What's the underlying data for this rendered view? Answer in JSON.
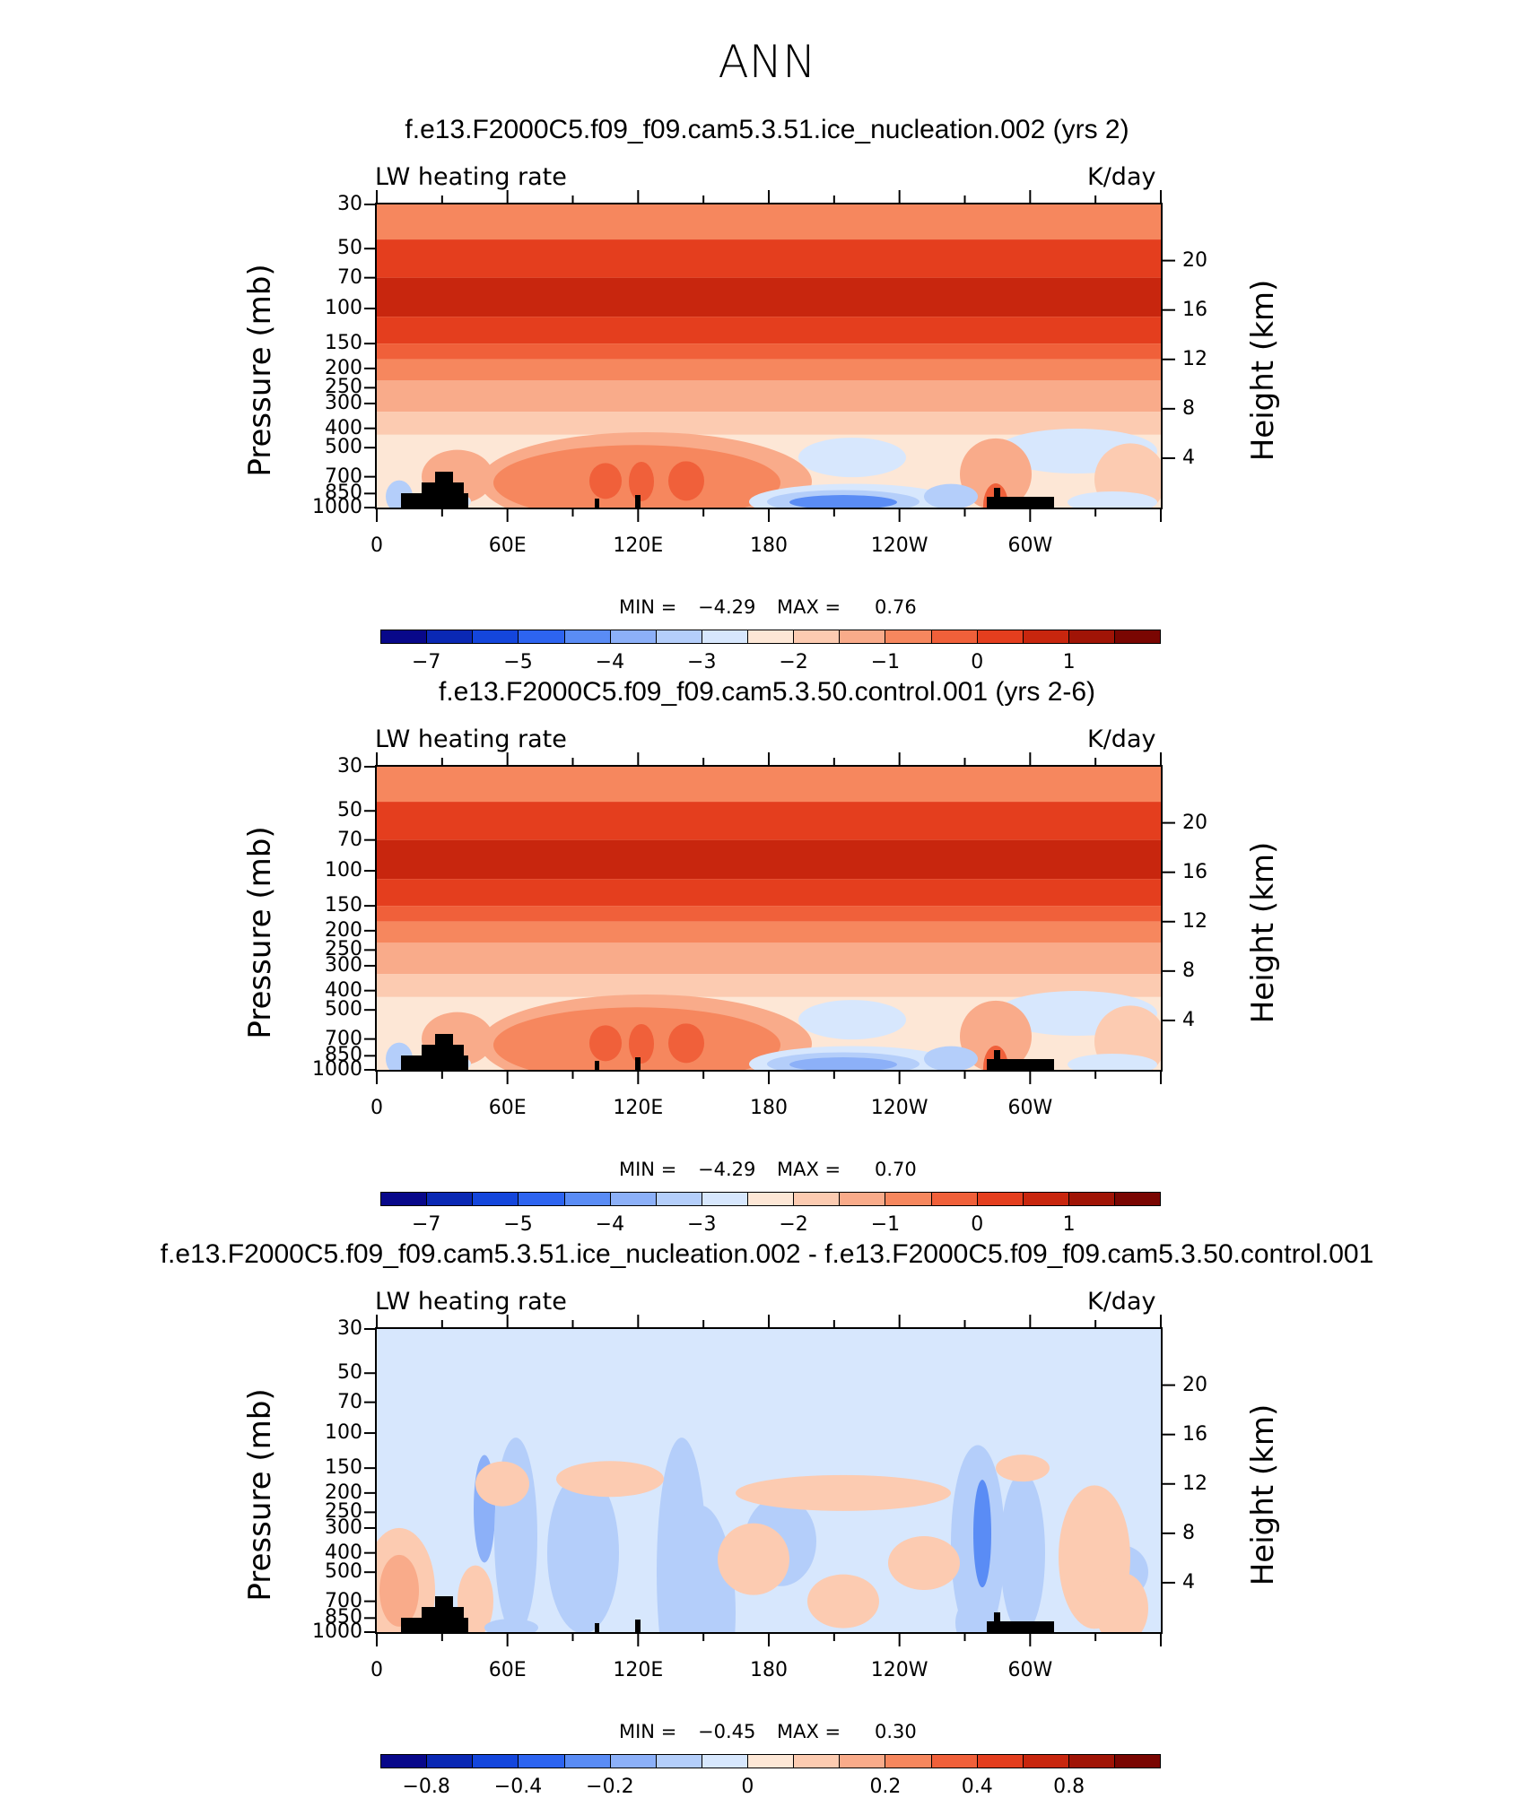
{
  "page_title": "ANN",
  "chart_data": [
    {
      "type": "contour",
      "title": "f.e13.F2000C5.f09_f09.cam5.3.51.ice_nucleation.002 (yrs 2)",
      "variable": "LW heating rate",
      "units": "K/day",
      "ylabel_left": "Pressure (mb)",
      "ylabel_right": "Height (km)",
      "x_ticks": [
        "0",
        "60E",
        "120E",
        "180",
        "120W",
        "60W"
      ],
      "y_ticks_left": [
        "30",
        "50",
        "70",
        "100",
        "150",
        "200",
        "250",
        "300",
        "400",
        "500",
        "700",
        "850",
        "1000"
      ],
      "y_ticks_right": [
        "20",
        "16",
        "12",
        "8",
        "4"
      ],
      "min_label": "MIN =",
      "min_value": "−4.29",
      "max_label": "MAX =",
      "max_value": "0.76",
      "colorbar_labels": [
        "−7",
        "−5",
        "−4",
        "−3",
        "−2",
        "−1",
        "0",
        "1"
      ],
      "colorbar_levels": [
        -8,
        -7,
        -6,
        -5,
        -4.5,
        -4,
        -3.5,
        -3,
        -2.5,
        -2,
        -1.5,
        -1,
        -0.5,
        0,
        0.5,
        1,
        1.5
      ]
    },
    {
      "type": "contour",
      "title": "f.e13.F2000C5.f09_f09.cam5.3.50.control.001 (yrs 2-6)",
      "variable": "LW heating rate",
      "units": "K/day",
      "ylabel_left": "Pressure (mb)",
      "ylabel_right": "Height (km)",
      "x_ticks": [
        "0",
        "60E",
        "120E",
        "180",
        "120W",
        "60W"
      ],
      "y_ticks_left": [
        "30",
        "50",
        "70",
        "100",
        "150",
        "200",
        "250",
        "300",
        "400",
        "500",
        "700",
        "850",
        "1000"
      ],
      "y_ticks_right": [
        "20",
        "16",
        "12",
        "8",
        "4"
      ],
      "min_label": "MIN =",
      "min_value": "−4.29",
      "max_label": "MAX =",
      "max_value": "0.70",
      "colorbar_labels": [
        "−7",
        "−5",
        "−4",
        "−3",
        "−2",
        "−1",
        "0",
        "1"
      ],
      "colorbar_levels": [
        -8,
        -7,
        -6,
        -5,
        -4.5,
        -4,
        -3.5,
        -3,
        -2.5,
        -2,
        -1.5,
        -1,
        -0.5,
        0,
        0.5,
        1,
        1.5
      ]
    },
    {
      "type": "contour",
      "title": "f.e13.F2000C5.f09_f09.cam5.3.51.ice_nucleation.002 - f.e13.F2000C5.f09_f09.cam5.3.50.control.001",
      "variable": "LW heating rate",
      "units": "K/day",
      "ylabel_left": "Pressure (mb)",
      "ylabel_right": "Height (km)",
      "x_ticks": [
        "0",
        "60E",
        "120E",
        "180",
        "120W",
        "60W"
      ],
      "y_ticks_left": [
        "30",
        "50",
        "70",
        "100",
        "150",
        "200",
        "250",
        "300",
        "400",
        "500",
        "700",
        "850",
        "1000"
      ],
      "y_ticks_right": [
        "20",
        "16",
        "12",
        "8",
        "4"
      ],
      "min_label": "MIN =",
      "min_value": "−0.45",
      "max_label": "MAX =",
      "max_value": "0.30",
      "colorbar_labels": [
        "−0.8",
        "−0.4",
        "−0.2",
        "0",
        "0.2",
        "0.4",
        "0.8"
      ],
      "colorbar_levels": [
        -1,
        -0.8,
        -0.6,
        -0.4,
        -0.3,
        -0.2,
        -0.1,
        -0.05,
        0,
        0.05,
        0.1,
        0.2,
        0.3,
        0.4,
        0.6,
        0.8,
        1
      ]
    }
  ],
  "colors": {
    "colormap": [
      "#08088a",
      "#0a28b4",
      "#1446dc",
      "#2d64f0",
      "#5a8cf5",
      "#8cb0f8",
      "#b4cefa",
      "#d7e7fd",
      "#fde7d6",
      "#fccbb1",
      "#f9ab8a",
      "#f6875e",
      "#f0603a",
      "#e43e1e",
      "#c8260e",
      "#a01406",
      "#7a0602"
    ],
    "topography": "#000000"
  }
}
